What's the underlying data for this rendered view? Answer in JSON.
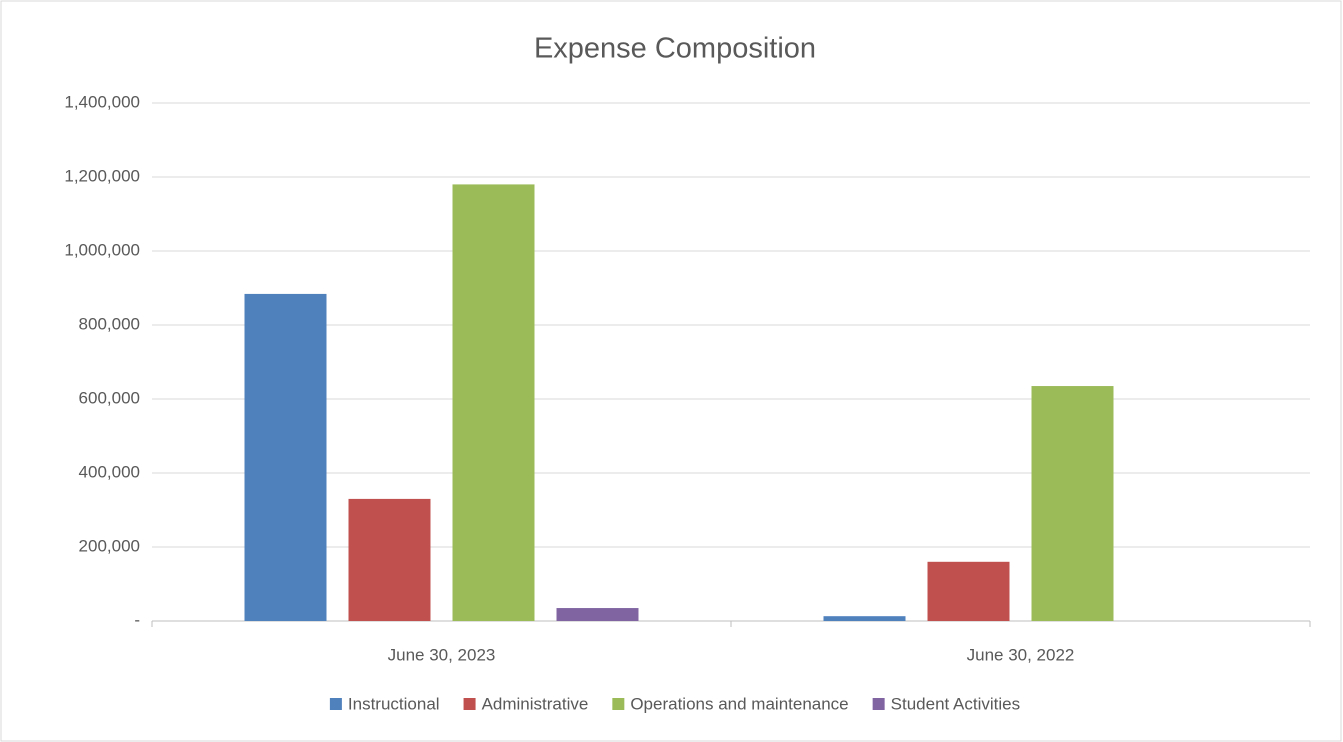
{
  "chart_data": {
    "type": "bar",
    "title": "Expense Composition",
    "categories": [
      "June 30, 2023",
      "June 30, 2022"
    ],
    "series": [
      {
        "name": "Instructional",
        "color": "#4f81bd",
        "values": [
          884000,
          13000
        ]
      },
      {
        "name": "Administrative",
        "color": "#c0504d",
        "values": [
          330000,
          160000
        ]
      },
      {
        "name": "Operations and maintenance",
        "color": "#9bbb59",
        "values": [
          1180000,
          635000
        ]
      },
      {
        "name": "Student Activities",
        "color": "#8064a2",
        "values": [
          35000,
          0
        ]
      }
    ],
    "ylim": [
      0,
      1400000
    ],
    "yticks": [
      {
        "value": 0,
        "label": "-"
      },
      {
        "value": 200000,
        "label": "200,000"
      },
      {
        "value": 400000,
        "label": "400,000"
      },
      {
        "value": 600000,
        "label": "600,000"
      },
      {
        "value": 800000,
        "label": "800,000"
      },
      {
        "value": 1000000,
        "label": "1,000,000"
      },
      {
        "value": 1200000,
        "label": "1,200,000"
      },
      {
        "value": 1400000,
        "label": "1,400,000"
      }
    ],
    "grid": true,
    "legend": "bottom"
  }
}
